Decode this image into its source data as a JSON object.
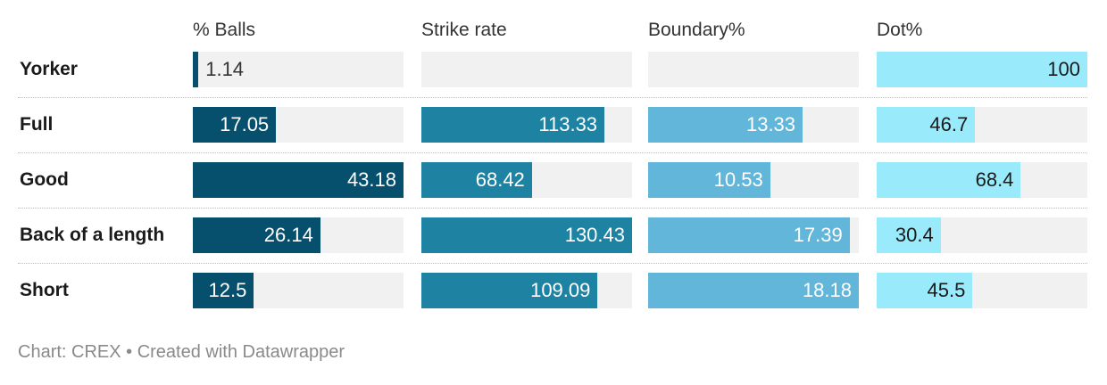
{
  "chart_data": {
    "type": "table",
    "columns": [
      {
        "key": "balls",
        "label": "% Balls",
        "max": 43.18,
        "color": "#06506e",
        "text_color": "#ffffff"
      },
      {
        "key": "sr",
        "label": "Strike rate",
        "max": 130.43,
        "color": "#1e83a3",
        "text_color": "#ffffff"
      },
      {
        "key": "boundary",
        "label": "Boundary%",
        "max": 18.18,
        "color": "#62b6d9",
        "text_color": "#ffffff"
      },
      {
        "key": "dot",
        "label": "Dot%",
        "max": 100,
        "color": "#99ebfc",
        "text_color": "#1a1a1a"
      }
    ],
    "rows": [
      {
        "label": "Yorker",
        "values": {
          "balls": 1.14,
          "sr": null,
          "boundary": null,
          "dot": 100
        },
        "display": {
          "balls": "1.14",
          "sr": "",
          "boundary": "",
          "dot": "100"
        }
      },
      {
        "label": "Full",
        "values": {
          "balls": 17.05,
          "sr": 113.33,
          "boundary": 13.33,
          "dot": 46.7
        },
        "display": {
          "balls": "17.05",
          "sr": "113.33",
          "boundary": "13.33",
          "dot": "46.7"
        }
      },
      {
        "label": "Good",
        "values": {
          "balls": 43.18,
          "sr": 68.42,
          "boundary": 10.53,
          "dot": 68.4
        },
        "display": {
          "balls": "43.18",
          "sr": "68.42",
          "boundary": "10.53",
          "dot": "68.4"
        }
      },
      {
        "label": "Back of a length",
        "values": {
          "balls": 26.14,
          "sr": 130.43,
          "boundary": 17.39,
          "dot": 30.4
        },
        "display": {
          "balls": "26.14",
          "sr": "130.43",
          "boundary": "17.39",
          "dot": "30.4"
        }
      },
      {
        "label": "Short",
        "values": {
          "balls": 12.5,
          "sr": 109.09,
          "boundary": 18.18,
          "dot": 45.5
        },
        "display": {
          "balls": "12.5",
          "sr": "109.09",
          "boundary": "18.18",
          "dot": "45.5"
        }
      }
    ]
  },
  "footer": {
    "text": "Chart: CREX • Created with Datawrapper"
  }
}
